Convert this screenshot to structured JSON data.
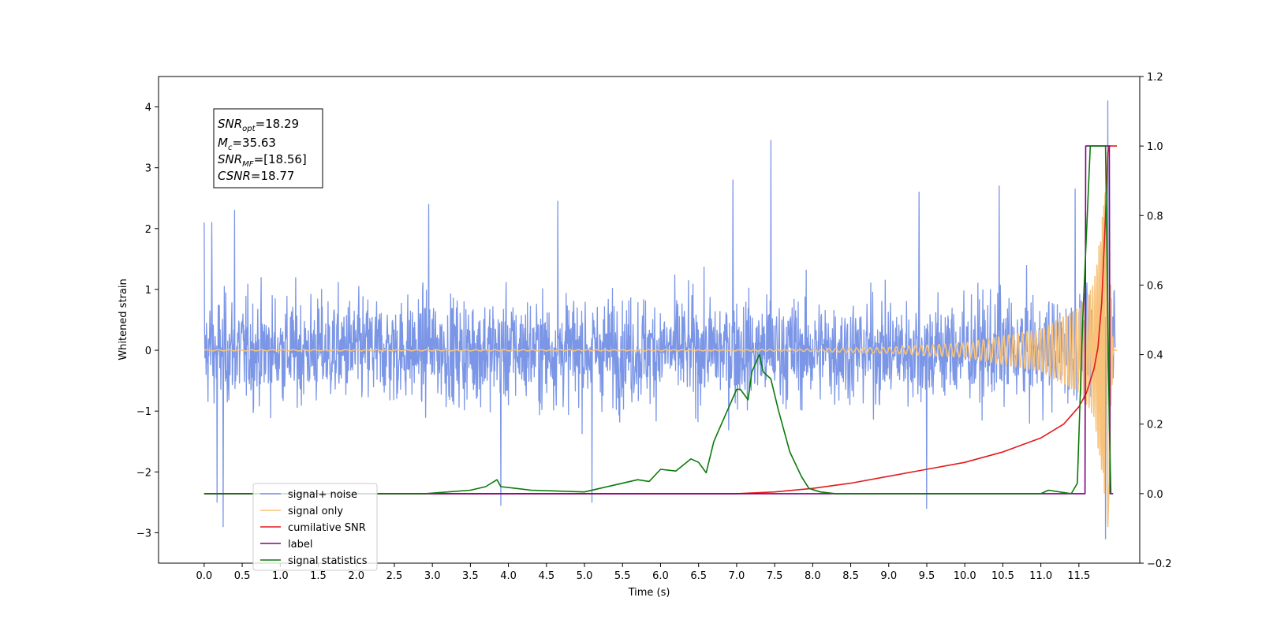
{
  "chart_data": {
    "type": "line",
    "title": "",
    "xlabel": "Time (s)",
    "ylabel_left": "Whitened strain",
    "ylabel_right": "",
    "xlim": [
      -0.6,
      12.3
    ],
    "ylim_left": [
      -3.5,
      4.5
    ],
    "ylim_right": [
      -0.2,
      1.2
    ],
    "x_ticks": [
      0.0,
      0.5,
      1.0,
      1.5,
      2.0,
      2.5,
      3.0,
      3.5,
      4.0,
      4.5,
      5.0,
      5.5,
      6.0,
      6.5,
      7.0,
      7.5,
      8.0,
      8.5,
      9.0,
      9.5,
      10.0,
      10.5,
      11.0,
      11.5
    ],
    "x_tick_labels": [
      "0.0",
      "0.5",
      "1.0",
      "1.5",
      "2.0",
      "2.5",
      "3.0",
      "3.5",
      "4.0",
      "4.5",
      "5.0",
      "5.5",
      "6.0",
      "6.5",
      "7.0",
      "7.5",
      "8.0",
      "8.5",
      "9.0",
      "9.5",
      "10.0",
      "10.5",
      "11.0",
      "11.5"
    ],
    "y_left_ticks": [
      -3,
      -2,
      -1,
      0,
      1,
      2,
      3,
      4
    ],
    "y_left_tick_labels": [
      "−3",
      "−2",
      "−1",
      "0",
      "1",
      "2",
      "3",
      "4"
    ],
    "y_right_ticks": [
      -0.2,
      0.0,
      0.2,
      0.4,
      0.6,
      0.8,
      1.0,
      1.2
    ],
    "y_right_tick_labels": [
      "−0.2",
      "0.0",
      "0.2",
      "0.4",
      "0.6",
      "0.8",
      "1.0",
      "1.2"
    ],
    "grid": false,
    "legend_position": "lower-left",
    "annotation": {
      "lines": [
        {
          "base": "SNR",
          "sub": "opt",
          "value": "=18.29"
        },
        {
          "base": "M",
          "sub": "c",
          "value": "=35.63"
        },
        {
          "base": "SNR",
          "sub": "MF",
          "value": "=[18.56]"
        },
        {
          "base": "CSNR",
          "sub": "",
          "value": "=18.77"
        }
      ]
    },
    "series": [
      {
        "name": "signal+ noise",
        "axis": "left",
        "color": "#7b96e6",
        "kind": "noise",
        "x_range": [
          0.0,
          11.98
        ],
        "noise_sigma": 0.85,
        "peaks": [
          [
            0.0,
            2.1
          ],
          [
            0.1,
            2.1
          ],
          [
            0.4,
            2.3
          ],
          [
            2.95,
            2.4
          ],
          [
            4.65,
            2.45
          ],
          [
            6.95,
            2.8
          ],
          [
            7.45,
            3.45
          ],
          [
            9.4,
            2.6
          ],
          [
            10.45,
            2.7
          ],
          [
            11.45,
            2.65
          ],
          [
            11.88,
            4.1
          ]
        ],
        "troughs": [
          [
            0.17,
            -2.5
          ],
          [
            0.25,
            -2.9
          ],
          [
            3.9,
            -2.55
          ],
          [
            5.1,
            -2.5
          ],
          [
            9.5,
            -2.6
          ],
          [
            11.85,
            -3.1
          ]
        ]
      },
      {
        "name": "signal only",
        "axis": "left",
        "color": "#f8c27a",
        "kind": "chirp",
        "x_range": [
          0.0,
          12.0
        ],
        "t_merger": 11.87,
        "envelope": [
          [
            7.0,
            0.01
          ],
          [
            8.0,
            0.02
          ],
          [
            9.0,
            0.05
          ],
          [
            10.0,
            0.12
          ],
          [
            11.0,
            0.35
          ],
          [
            11.5,
            0.7
          ],
          [
            11.7,
            1.1
          ],
          [
            11.85,
            2.6
          ],
          [
            11.88,
            -2.9
          ],
          [
            11.95,
            0.0
          ]
        ]
      },
      {
        "name": "cumilative SNR",
        "axis": "right",
        "color": "#e31a1c",
        "x": [
          0.0,
          7.0,
          7.5,
          8.0,
          8.5,
          9.0,
          9.5,
          10.0,
          10.5,
          11.0,
          11.3,
          11.5,
          11.6,
          11.7,
          11.75,
          11.8,
          11.85,
          11.88,
          11.9,
          11.95,
          12.0
        ],
        "y": [
          0.0,
          0.0,
          0.005,
          0.015,
          0.03,
          0.05,
          0.07,
          0.09,
          0.12,
          0.16,
          0.2,
          0.25,
          0.29,
          0.36,
          0.42,
          0.55,
          0.8,
          0.98,
          1.0,
          1.0,
          1.0
        ]
      },
      {
        "name": "label",
        "axis": "right",
        "color": "#800080",
        "x": [
          0.0,
          11.58,
          11.59,
          11.9,
          11.91,
          11.95
        ],
        "y": [
          0.0,
          0.0,
          1.0,
          1.0,
          0.0,
          0.0
        ]
      },
      {
        "name": "signal statistics",
        "axis": "right",
        "color": "#0a7a0a",
        "x": [
          0.0,
          2.9,
          3.5,
          3.7,
          3.85,
          3.9,
          4.1,
          4.3,
          5.0,
          5.4,
          5.7,
          5.85,
          6.0,
          6.2,
          6.4,
          6.5,
          6.6,
          6.7,
          6.8,
          6.9,
          7.0,
          7.05,
          7.15,
          7.2,
          7.3,
          7.35,
          7.4,
          7.45,
          7.55,
          7.7,
          7.85,
          7.95,
          8.1,
          8.3,
          11.0,
          11.1,
          11.4,
          11.48,
          11.55,
          11.65,
          11.75,
          11.85,
          11.9,
          11.92
        ],
        "y": [
          0.0,
          0.0,
          0.01,
          0.02,
          0.04,
          0.02,
          0.015,
          0.01,
          0.005,
          0.025,
          0.04,
          0.035,
          0.07,
          0.065,
          0.1,
          0.09,
          0.06,
          0.15,
          0.2,
          0.25,
          0.3,
          0.3,
          0.27,
          0.35,
          0.4,
          0.35,
          0.34,
          0.33,
          0.24,
          0.12,
          0.05,
          0.015,
          0.005,
          0.0,
          0.0,
          0.01,
          0.0,
          0.03,
          0.5,
          1.0,
          1.0,
          1.0,
          0.2,
          0.0
        ]
      }
    ],
    "legend": [
      {
        "label": "signal+ noise",
        "color": "#7b96e6"
      },
      {
        "label": "signal only",
        "color": "#f8c27a"
      },
      {
        "label": "cumilative SNR",
        "color": "#e31a1c"
      },
      {
        "label": "label",
        "color": "#800080"
      },
      {
        "label": "signal statistics",
        "color": "#0a7a0a"
      }
    ]
  }
}
